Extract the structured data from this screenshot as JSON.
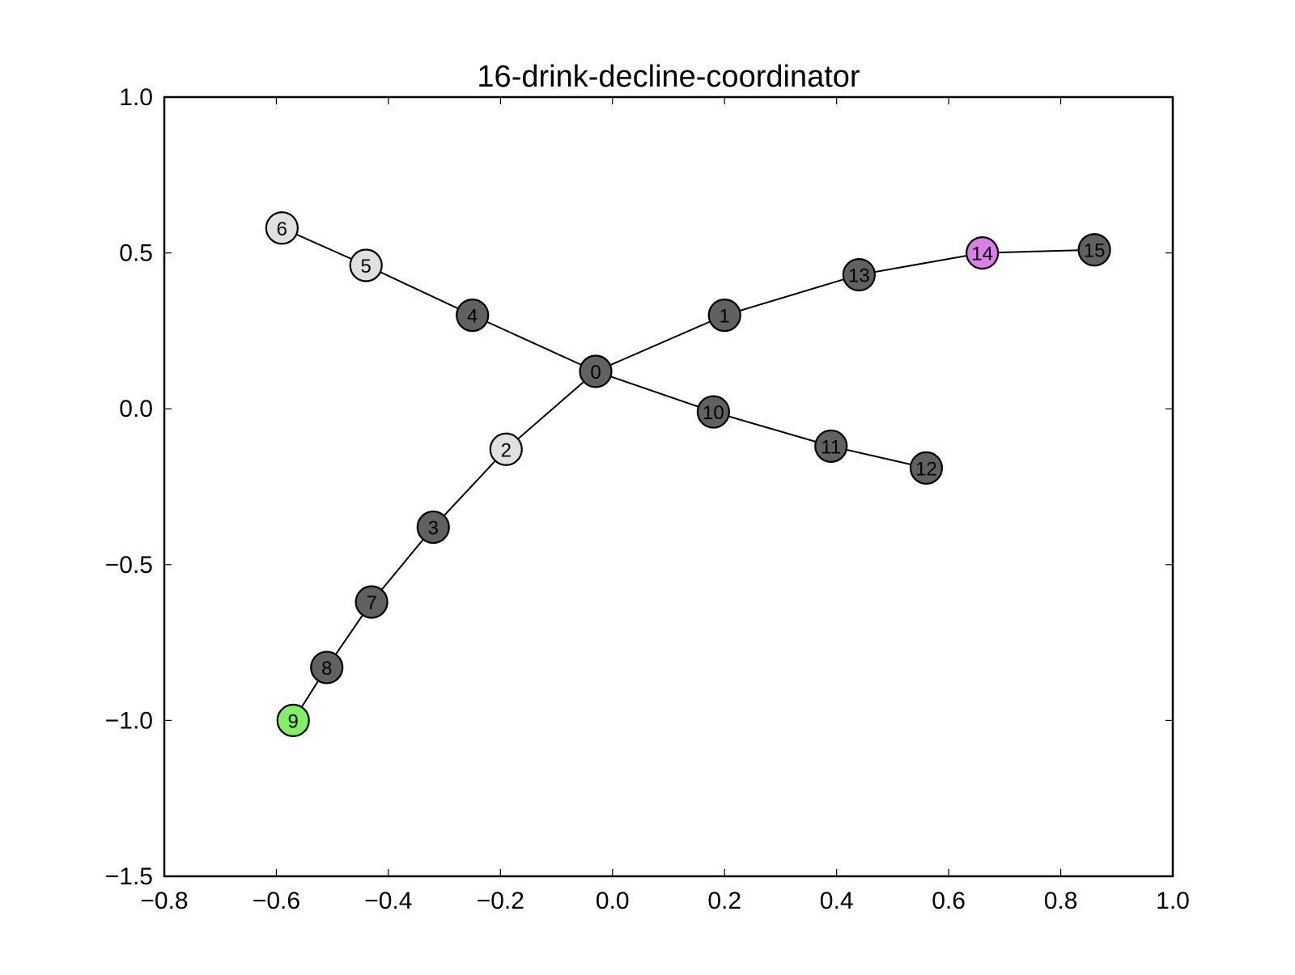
{
  "chart_data": {
    "type": "graph",
    "title": "16-drink-decline-coordinator",
    "xlim": [
      -0.8,
      1.0
    ],
    "ylim": [
      -1.5,
      1.0
    ],
    "x_ticks": [
      {
        "value": -0.8,
        "label": "−0.8"
      },
      {
        "value": -0.6,
        "label": "−0.6"
      },
      {
        "value": -0.4,
        "label": "−0.4"
      },
      {
        "value": -0.2,
        "label": "−0.2"
      },
      {
        "value": 0.0,
        "label": "0.0"
      },
      {
        "value": 0.2,
        "label": "0.2"
      },
      {
        "value": 0.4,
        "label": "0.4"
      },
      {
        "value": 0.6,
        "label": "0.6"
      },
      {
        "value": 0.8,
        "label": "0.8"
      },
      {
        "value": 1.0,
        "label": "1.0"
      }
    ],
    "y_ticks": [
      {
        "value": 1.0,
        "label": "1.0"
      },
      {
        "value": 0.5,
        "label": "0.5"
      },
      {
        "value": 0.0,
        "label": "0.0"
      },
      {
        "value": -0.5,
        "label": "−0.5"
      },
      {
        "value": -1.0,
        "label": "−1.0"
      },
      {
        "value": -1.5,
        "label": "−1.5"
      }
    ],
    "colors": {
      "default": "#616161",
      "light": "#e0e0e0",
      "green": "#80f066",
      "purple": "#d97fe6"
    },
    "nodes": [
      {
        "id": "0",
        "x": -0.03,
        "y": 0.12,
        "color": "#616161"
      },
      {
        "id": "1",
        "x": 0.2,
        "y": 0.3,
        "color": "#616161"
      },
      {
        "id": "2",
        "x": -0.19,
        "y": -0.13,
        "color": "#e0e0e0"
      },
      {
        "id": "3",
        "x": -0.32,
        "y": -0.38,
        "color": "#616161"
      },
      {
        "id": "4",
        "x": -0.25,
        "y": 0.3,
        "color": "#616161"
      },
      {
        "id": "5",
        "x": -0.44,
        "y": 0.46,
        "color": "#e0e0e0"
      },
      {
        "id": "6",
        "x": -0.59,
        "y": 0.58,
        "color": "#e0e0e0"
      },
      {
        "id": "7",
        "x": -0.43,
        "y": -0.62,
        "color": "#616161"
      },
      {
        "id": "8",
        "x": -0.51,
        "y": -0.83,
        "color": "#616161"
      },
      {
        "id": "9",
        "x": -0.57,
        "y": -1.0,
        "color": "#80f066"
      },
      {
        "id": "10",
        "x": 0.18,
        "y": -0.01,
        "color": "#616161"
      },
      {
        "id": "11",
        "x": 0.39,
        "y": -0.12,
        "color": "#616161"
      },
      {
        "id": "12",
        "x": 0.56,
        "y": -0.19,
        "color": "#616161"
      },
      {
        "id": "13",
        "x": 0.44,
        "y": 0.43,
        "color": "#616161"
      },
      {
        "id": "14",
        "x": 0.66,
        "y": 0.5,
        "color": "#d97fe6"
      },
      {
        "id": "15",
        "x": 0.86,
        "y": 0.51,
        "color": "#616161"
      }
    ],
    "edges": [
      [
        "0",
        "1"
      ],
      [
        "0",
        "2"
      ],
      [
        "0",
        "4"
      ],
      [
        "0",
        "10"
      ],
      [
        "1",
        "13"
      ],
      [
        "13",
        "14"
      ],
      [
        "14",
        "15"
      ],
      [
        "2",
        "3"
      ],
      [
        "3",
        "7"
      ],
      [
        "7",
        "8"
      ],
      [
        "8",
        "9"
      ],
      [
        "4",
        "5"
      ],
      [
        "5",
        "6"
      ],
      [
        "10",
        "11"
      ],
      [
        "11",
        "12"
      ]
    ]
  }
}
